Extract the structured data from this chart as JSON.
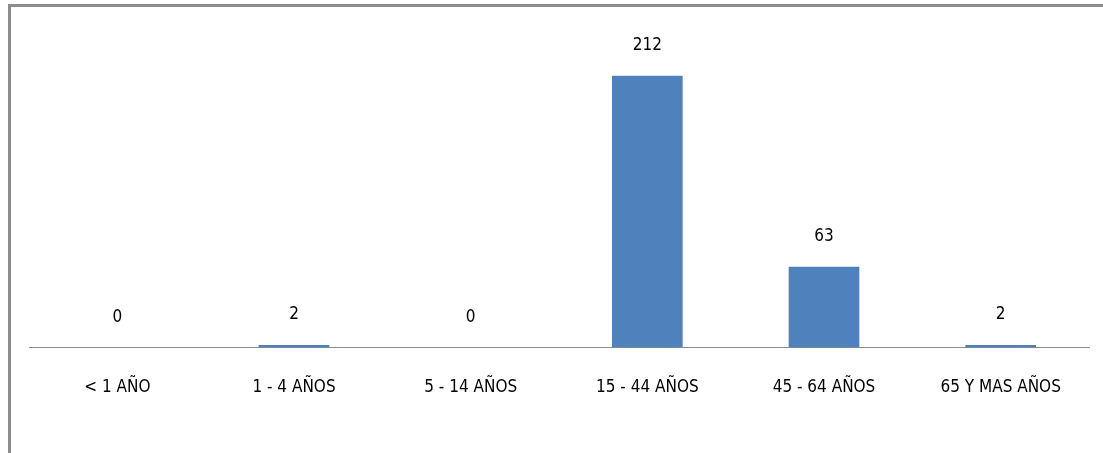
{
  "chart_data": {
    "type": "bar",
    "categories": [
      "< 1 AÑO",
      "1 - 4 AÑOS",
      "5 - 14 AÑOS",
      "15 - 44 AÑOS",
      "45 - 64 AÑOS",
      "65 Y MAS AÑOS"
    ],
    "values": [
      0,
      2,
      0,
      212,
      63,
      2
    ],
    "color": "#4f81bd",
    "data_labels": true,
    "grid": false,
    "legend": false
  }
}
